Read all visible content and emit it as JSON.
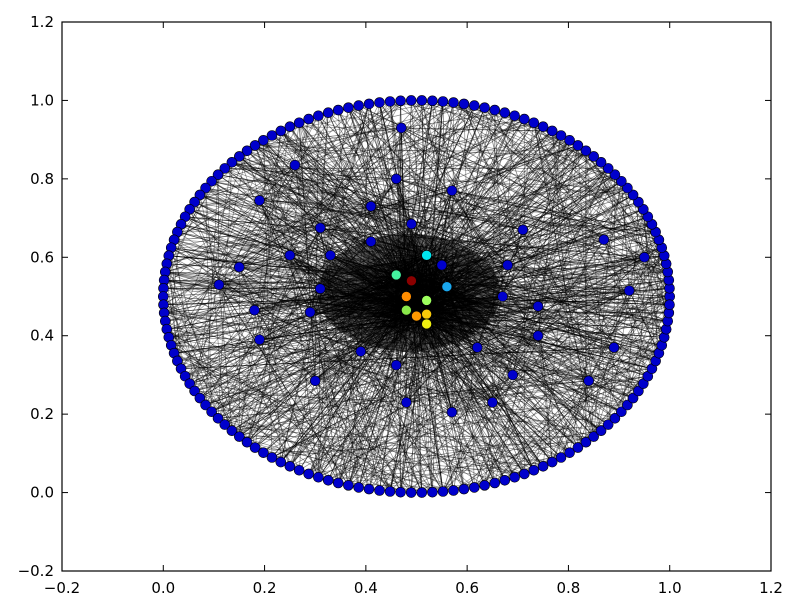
{
  "chart_data": {
    "type": "scatter",
    "title": "",
    "xlabel": "",
    "ylabel": "",
    "xlim": [
      -0.2,
      1.2
    ],
    "ylim": [
      -0.2,
      1.2
    ],
    "grid": false,
    "legend": "none",
    "xticks": [
      "−0.2",
      "0.0",
      "0.2",
      "0.4",
      "0.6",
      "0.8",
      "1.0",
      "1.2"
    ],
    "yticks": [
      "−0.2",
      "0.0",
      "0.2",
      "0.4",
      "0.6",
      "0.8",
      "1.0",
      "1.2"
    ],
    "x_tick_values": [
      -0.2,
      0.0,
      0.2,
      0.4,
      0.6,
      0.8,
      1.0,
      1.2
    ],
    "y_tick_values": [
      -0.2,
      0.0,
      0.2,
      0.4,
      0.6,
      0.8,
      1.0,
      1.2
    ],
    "edge_color": "#000000",
    "ring": {
      "center": [
        0.5,
        0.5
      ],
      "radius": 0.5,
      "node_count": 150,
      "color": "#0000cc"
    },
    "inner_nodes": [
      {
        "x": 0.47,
        "y": 0.93,
        "color": "#0000cc"
      },
      {
        "x": 0.26,
        "y": 0.835,
        "color": "#0000cc"
      },
      {
        "x": 0.46,
        "y": 0.8,
        "color": "#0000cc"
      },
      {
        "x": 0.57,
        "y": 0.77,
        "color": "#0000cc"
      },
      {
        "x": 0.19,
        "y": 0.745,
        "color": "#0000cc"
      },
      {
        "x": 0.41,
        "y": 0.73,
        "color": "#0000cc"
      },
      {
        "x": 0.31,
        "y": 0.675,
        "color": "#0000cc"
      },
      {
        "x": 0.49,
        "y": 0.685,
        "color": "#0000cc"
      },
      {
        "x": 0.71,
        "y": 0.67,
        "color": "#0000cc"
      },
      {
        "x": 0.87,
        "y": 0.645,
        "color": "#0000cc"
      },
      {
        "x": 0.41,
        "y": 0.64,
        "color": "#0000cc"
      },
      {
        "x": 0.25,
        "y": 0.605,
        "color": "#0000cc"
      },
      {
        "x": 0.33,
        "y": 0.605,
        "color": "#0000cc"
      },
      {
        "x": 0.15,
        "y": 0.575,
        "color": "#0000cc"
      },
      {
        "x": 0.55,
        "y": 0.58,
        "color": "#0000cc"
      },
      {
        "x": 0.68,
        "y": 0.58,
        "color": "#0000cc"
      },
      {
        "x": 0.95,
        "y": 0.6,
        "color": "#0000cc"
      },
      {
        "x": 0.11,
        "y": 0.53,
        "color": "#0000cc"
      },
      {
        "x": 0.31,
        "y": 0.52,
        "color": "#0000cc"
      },
      {
        "x": 0.92,
        "y": 0.515,
        "color": "#0000cc"
      },
      {
        "x": 0.67,
        "y": 0.5,
        "color": "#0000cc"
      },
      {
        "x": 0.74,
        "y": 0.475,
        "color": "#0000cc"
      },
      {
        "x": 0.18,
        "y": 0.465,
        "color": "#0000cc"
      },
      {
        "x": 0.29,
        "y": 0.46,
        "color": "#0000cc"
      },
      {
        "x": 0.19,
        "y": 0.39,
        "color": "#0000cc"
      },
      {
        "x": 0.74,
        "y": 0.4,
        "color": "#0000cc"
      },
      {
        "x": 0.89,
        "y": 0.37,
        "color": "#0000cc"
      },
      {
        "x": 0.39,
        "y": 0.36,
        "color": "#0000cc"
      },
      {
        "x": 0.62,
        "y": 0.37,
        "color": "#0000cc"
      },
      {
        "x": 0.46,
        "y": 0.325,
        "color": "#0000cc"
      },
      {
        "x": 0.69,
        "y": 0.3,
        "color": "#0000cc"
      },
      {
        "x": 0.3,
        "y": 0.285,
        "color": "#0000cc"
      },
      {
        "x": 0.84,
        "y": 0.285,
        "color": "#0000cc"
      },
      {
        "x": 0.48,
        "y": 0.23,
        "color": "#0000cc"
      },
      {
        "x": 0.65,
        "y": 0.23,
        "color": "#0000cc"
      },
      {
        "x": 0.57,
        "y": 0.205,
        "color": "#0000cc"
      },
      {
        "x": 0.52,
        "y": 0.605,
        "color": "#00e5ee"
      },
      {
        "x": 0.56,
        "y": 0.525,
        "color": "#1aa7ee"
      },
      {
        "x": 0.46,
        "y": 0.555,
        "color": "#44f2a0"
      },
      {
        "x": 0.49,
        "y": 0.54,
        "color": "#8b0000"
      },
      {
        "x": 0.48,
        "y": 0.5,
        "color": "#ff8c00"
      },
      {
        "x": 0.52,
        "y": 0.49,
        "color": "#9eff5e"
      },
      {
        "x": 0.48,
        "y": 0.465,
        "color": "#8ae84a"
      },
      {
        "x": 0.5,
        "y": 0.45,
        "color": "#ff9a00"
      },
      {
        "x": 0.52,
        "y": 0.455,
        "color": "#f7c80a"
      },
      {
        "x": 0.52,
        "y": 0.43,
        "color": "#eeee10"
      }
    ]
  }
}
